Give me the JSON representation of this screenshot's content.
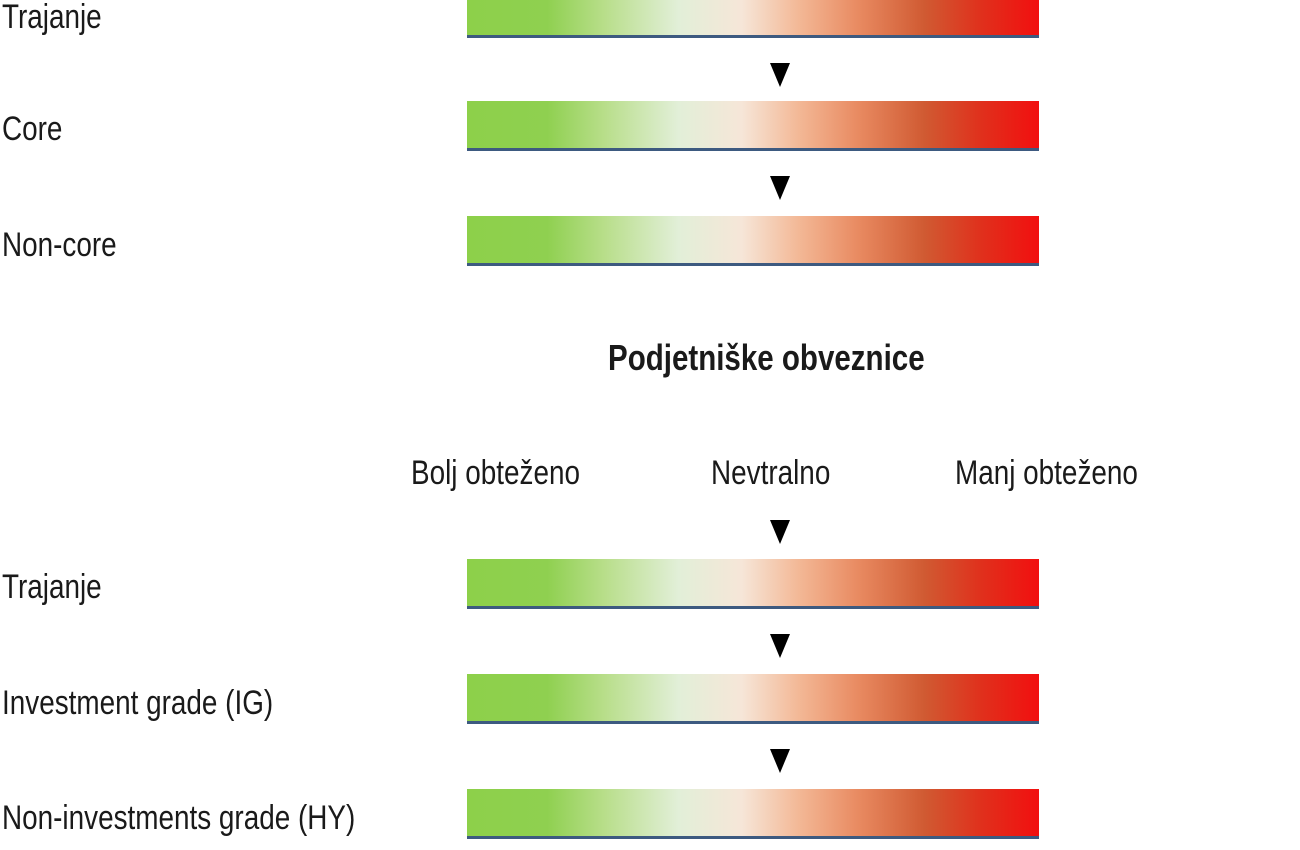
{
  "government": {
    "rows": [
      {
        "label": "Trajanje"
      },
      {
        "label": "Core"
      },
      {
        "label": "Non-core"
      }
    ]
  },
  "corporate": {
    "title": "Podjetniške obveznice",
    "scale": {
      "left": "Bolj obteženo",
      "center": "Nevtralno",
      "right": "Manj obteženo"
    },
    "rows": [
      {
        "label": "Trajanje"
      },
      {
        "label": "Investment grade (IG)"
      },
      {
        "label": "Non-investments grade (HY)"
      }
    ]
  },
  "colors": {
    "positive": "#8dd04a",
    "neutral": "#f6e6d8",
    "negative": "#f20f0f",
    "arrow": "#000000"
  }
}
